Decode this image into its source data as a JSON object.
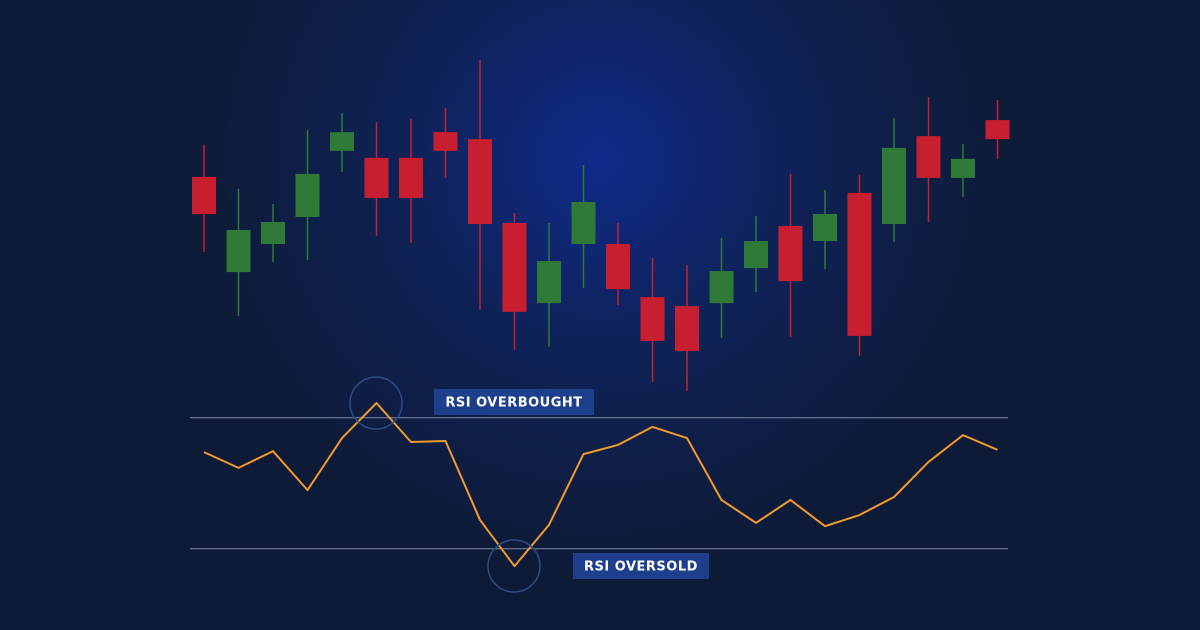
{
  "chart_data": {
    "type": "candlestick",
    "open": [
      64.4,
      35.9,
      44.3,
      52.4,
      72.2,
      70.1,
      70.1,
      77.8,
      75.7,
      50.6,
      26.6,
      44.3,
      44.3,
      28.4,
      25.7,
      26.6,
      37.1,
      49.7,
      45.2,
      59.6,
      50.3,
      76.6,
      64.1,
      81.4
    ],
    "high": [
      74.0,
      60.8,
      56.3,
      78.4,
      83.5,
      80.8,
      81.7,
      85.0,
      99.4,
      53.6,
      50.6,
      68.0,
      50.6,
      40.1,
      38.0,
      46.1,
      52.7,
      65.3,
      60.5,
      65.0,
      82.0,
      88.3,
      74.3,
      87.4
    ],
    "low": [
      41.9,
      22.8,
      38.9,
      39.5,
      65.9,
      46.7,
      44.6,
      64.1,
      24.6,
      12.6,
      13.5,
      31.1,
      26.0,
      3.0,
      0.3,
      16.2,
      29.9,
      16.5,
      36.8,
      10.8,
      44.9,
      50.9,
      58.4,
      69.8
    ],
    "close": [
      53.3,
      48.5,
      50.9,
      65.3,
      77.8,
      58.1,
      58.1,
      72.2,
      50.3,
      24.0,
      39.2,
      56.9,
      30.8,
      15.3,
      12.3,
      36.2,
      45.2,
      33.2,
      53.3,
      16.8,
      73.1,
      64.1,
      69.8,
      75.7
    ],
    "ylim": [
      0,
      100
    ],
    "up_color": "#2f7a36",
    "down_color": "#c81f30",
    "indicator": {
      "type": "line",
      "values": [
        59.5,
        54.7,
        59.8,
        47.9,
        63.8,
        74.5,
        62.6,
        62.9,
        38.8,
        24.7,
        37.3,
        58.9,
        61.7,
        67.2,
        63.8,
        44.9,
        37.9,
        44.9,
        36.9,
        40.3,
        45.8,
        56.5,
        64.7,
        60.2
      ],
      "ylim": [
        0,
        100
      ],
      "levels": [
        70,
        30
      ],
      "color": "#f39a2b"
    },
    "annotations": [
      "RSI OVERBOUGHT",
      "RSI OVERSOLD"
    ]
  }
}
